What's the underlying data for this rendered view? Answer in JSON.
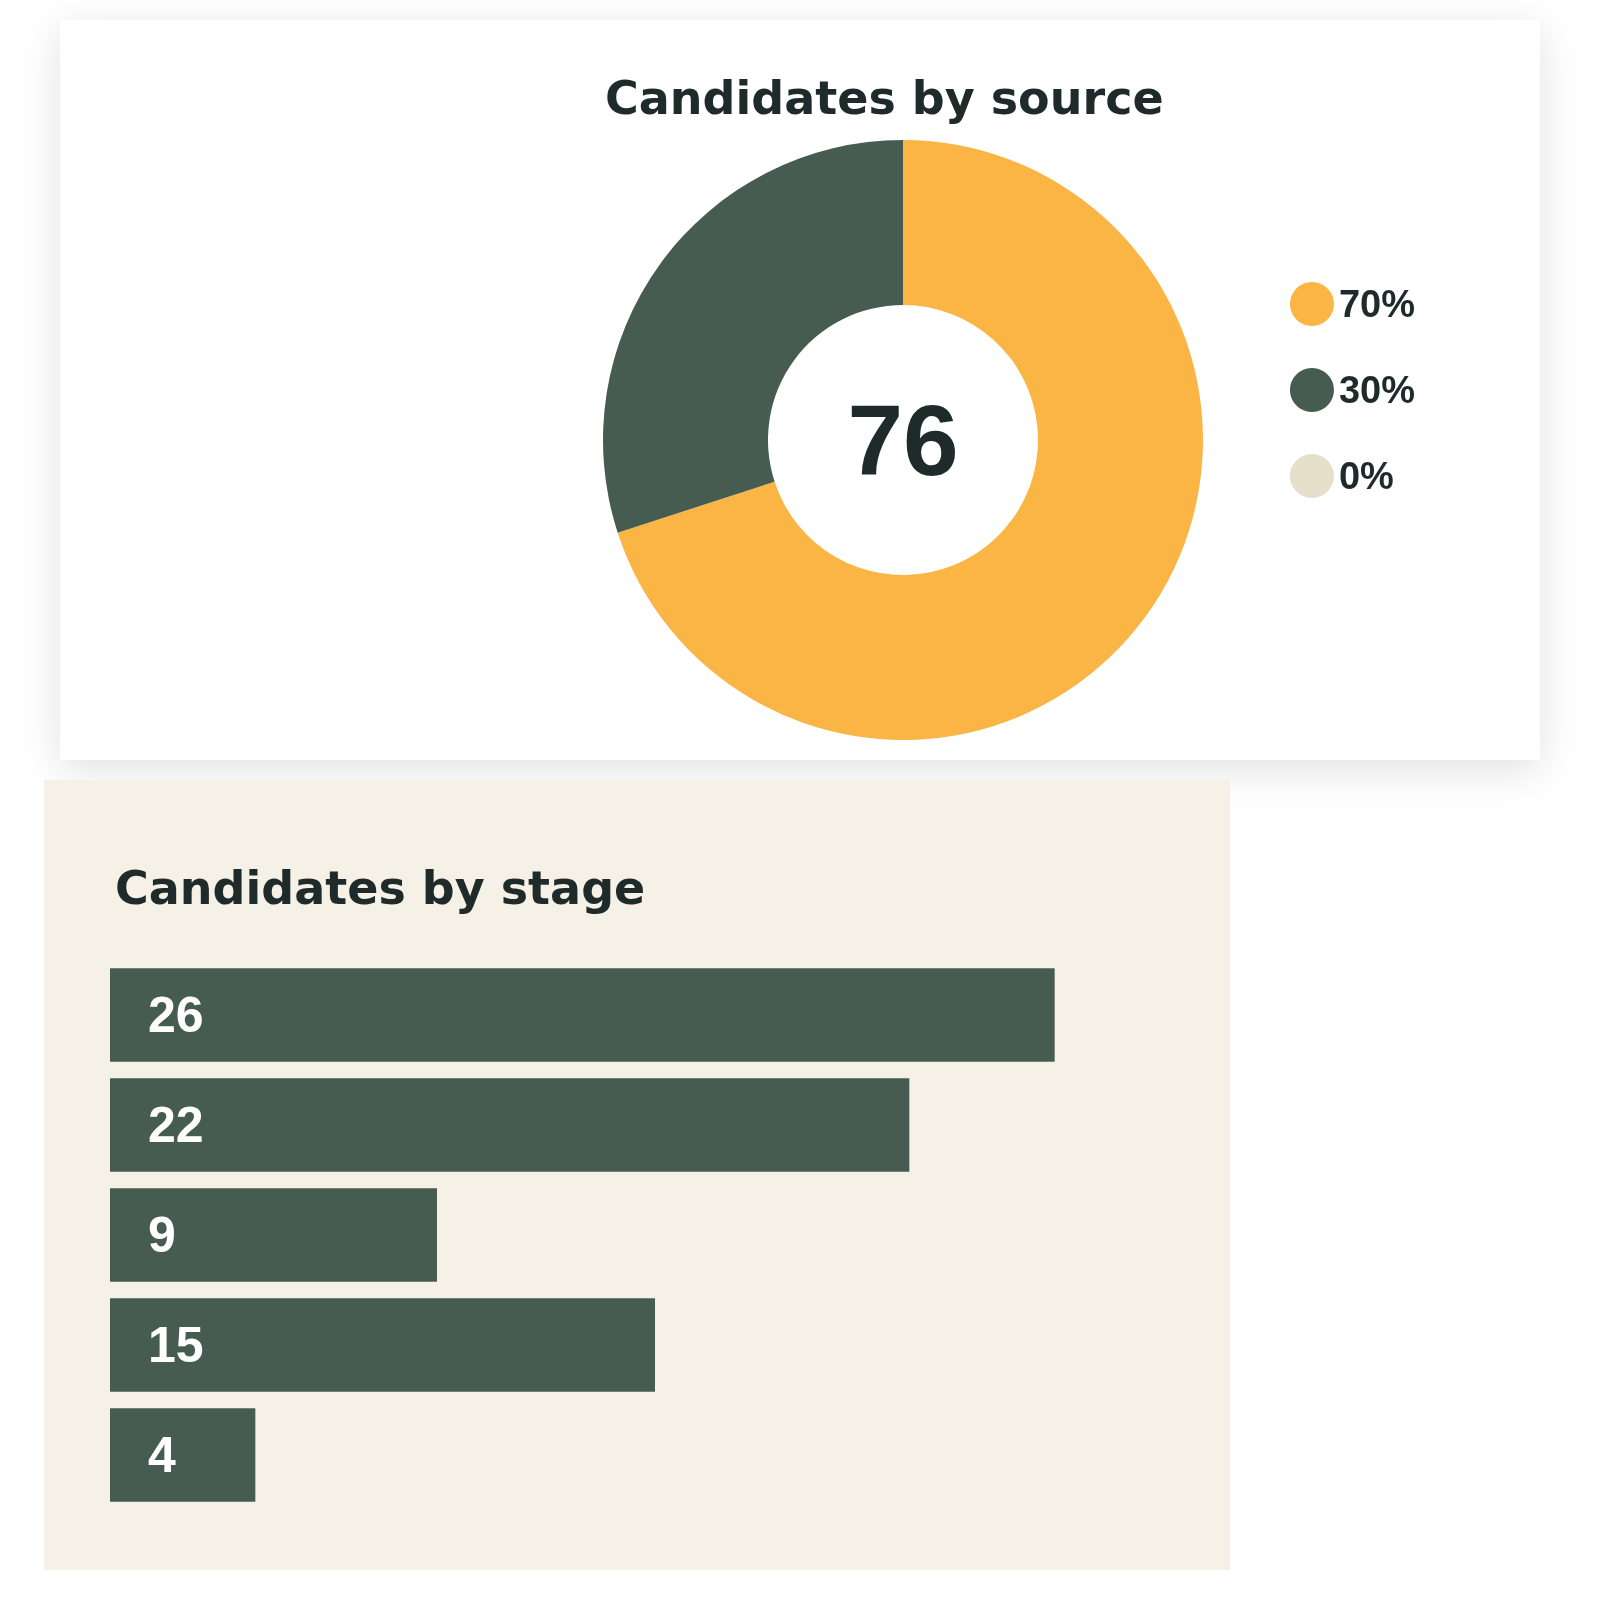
{
  "chart_data": [
    {
      "type": "donut",
      "title": "Candidates by source",
      "categories": [
        "70%",
        "30%",
        "0%"
      ],
      "values": [
        70,
        30,
        0
      ],
      "colors": [
        "#fbb545",
        "#465c50",
        "#e6dfca"
      ],
      "annotations": [
        "76"
      ],
      "legend": "right"
    },
    {
      "type": "bar",
      "title": "Candidates by stage",
      "orientation": "horizontal",
      "categories": [
        null,
        null,
        null,
        null,
        null
      ],
      "values": [
        26,
        22,
        9,
        15,
        4
      ],
      "color": "#465c50",
      "data_labels": true,
      "tick_labels": false
    }
  ]
}
